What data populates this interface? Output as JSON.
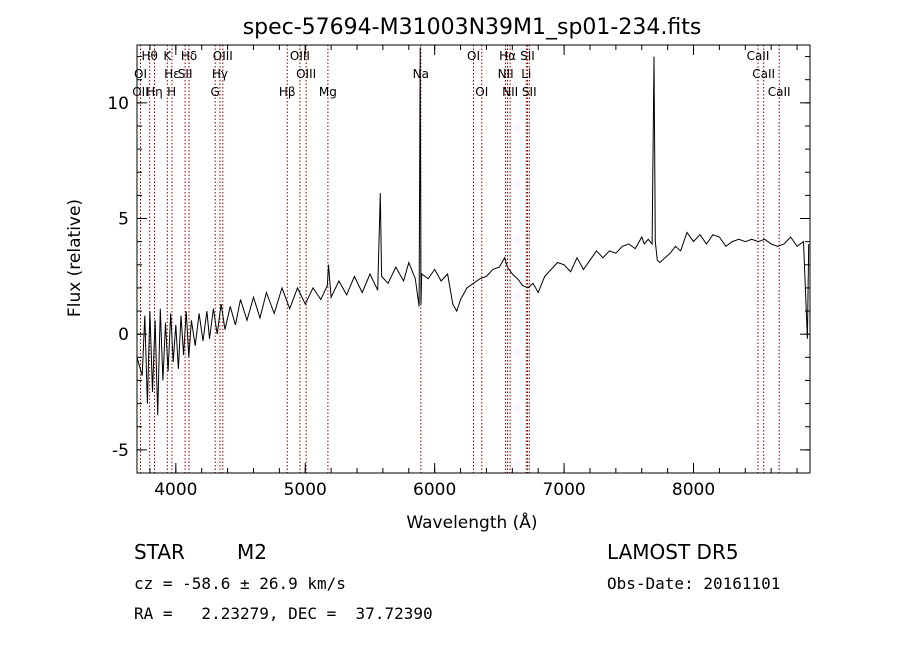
{
  "chart_data": {
    "type": "line",
    "title": "spec-57694-M31003N39M1_sp01-234.fits",
    "xlabel": "Wavelength (Å)",
    "ylabel": "Flux (relative)",
    "xlim": [
      3700,
      8900
    ],
    "ylim": [
      -6,
      12.5
    ],
    "xticks": [
      4000,
      5000,
      6000,
      7000,
      8000
    ],
    "yticks": [
      -5,
      0,
      5,
      10
    ],
    "grid": false,
    "line_color": "#000000",
    "marker_color": "#8b0000",
    "series": [
      {
        "values": [
          [
            3700,
            -1.0
          ],
          [
            3740,
            -1.8
          ],
          [
            3760,
            0.8
          ],
          [
            3780,
            -3.0
          ],
          [
            3800,
            1.0
          ],
          [
            3820,
            -2.5
          ],
          [
            3840,
            0.6
          ],
          [
            3860,
            -3.5
          ],
          [
            3880,
            1.1
          ],
          [
            3900,
            -2.0
          ],
          [
            3920,
            0.5
          ],
          [
            3940,
            -1.6
          ],
          [
            3960,
            0.9
          ],
          [
            3980,
            -1.2
          ],
          [
            4000,
            0.4
          ],
          [
            4020,
            -1.5
          ],
          [
            4040,
            0.8
          ],
          [
            4060,
            -0.9
          ],
          [
            4080,
            1.0
          ],
          [
            4100,
            -1.0
          ],
          [
            4120,
            0.6
          ],
          [
            4150,
            -0.5
          ],
          [
            4180,
            0.9
          ],
          [
            4210,
            -0.3
          ],
          [
            4240,
            1.0
          ],
          [
            4260,
            -0.2
          ],
          [
            4290,
            1.1
          ],
          [
            4320,
            0.0
          ],
          [
            4350,
            1.3
          ],
          [
            4380,
            0.2
          ],
          [
            4420,
            1.2
          ],
          [
            4460,
            0.4
          ],
          [
            4500,
            1.5
          ],
          [
            4550,
            0.6
          ],
          [
            4600,
            1.6
          ],
          [
            4650,
            0.7
          ],
          [
            4700,
            1.8
          ],
          [
            4760,
            0.9
          ],
          [
            4820,
            2.0
          ],
          [
            4880,
            1.1
          ],
          [
            4940,
            2.0
          ],
          [
            5000,
            1.3
          ],
          [
            5060,
            2.0
          ],
          [
            5120,
            1.5
          ],
          [
            5170,
            2.1
          ],
          [
            5180,
            3.0
          ],
          [
            5200,
            1.6
          ],
          [
            5260,
            2.3
          ],
          [
            5320,
            1.7
          ],
          [
            5380,
            2.5
          ],
          [
            5440,
            1.8
          ],
          [
            5500,
            2.6
          ],
          [
            5560,
            1.9
          ],
          [
            5570,
            4.0
          ],
          [
            5580,
            6.1
          ],
          [
            5590,
            2.5
          ],
          [
            5640,
            2.2
          ],
          [
            5700,
            2.9
          ],
          [
            5760,
            2.3
          ],
          [
            5800,
            3.1
          ],
          [
            5850,
            2.4
          ],
          [
            5880,
            1.2
          ],
          [
            5888,
            12.4
          ],
          [
            5894,
            1.3
          ],
          [
            5900,
            2.6
          ],
          [
            5950,
            2.4
          ],
          [
            6000,
            2.8
          ],
          [
            6050,
            2.3
          ],
          [
            6100,
            2.6
          ],
          [
            6140,
            1.3
          ],
          [
            6170,
            1.0
          ],
          [
            6200,
            1.5
          ],
          [
            6250,
            2.0
          ],
          [
            6300,
            2.2
          ],
          [
            6350,
            2.4
          ],
          [
            6400,
            2.5
          ],
          [
            6450,
            2.8
          ],
          [
            6500,
            2.9
          ],
          [
            6540,
            3.3
          ],
          [
            6563,
            2.9
          ],
          [
            6600,
            2.6
          ],
          [
            6640,
            2.4
          ],
          [
            6680,
            2.1
          ],
          [
            6720,
            2.0
          ],
          [
            6760,
            2.2
          ],
          [
            6800,
            1.8
          ],
          [
            6850,
            2.5
          ],
          [
            6900,
            2.8
          ],
          [
            6950,
            3.1
          ],
          [
            7000,
            3.0
          ],
          [
            7050,
            2.7
          ],
          [
            7100,
            3.3
          ],
          [
            7150,
            2.8
          ],
          [
            7200,
            3.2
          ],
          [
            7250,
            3.6
          ],
          [
            7300,
            3.3
          ],
          [
            7350,
            3.6
          ],
          [
            7400,
            3.5
          ],
          [
            7450,
            3.8
          ],
          [
            7500,
            3.9
          ],
          [
            7550,
            3.7
          ],
          [
            7600,
            4.2
          ],
          [
            7620,
            3.9
          ],
          [
            7650,
            4.1
          ],
          [
            7680,
            3.9
          ],
          [
            7695,
            12.0
          ],
          [
            7705,
            4.0
          ],
          [
            7720,
            3.2
          ],
          [
            7740,
            3.1
          ],
          [
            7780,
            3.3
          ],
          [
            7820,
            3.5
          ],
          [
            7860,
            3.8
          ],
          [
            7900,
            3.6
          ],
          [
            7950,
            4.4
          ],
          [
            8000,
            4.0
          ],
          [
            8050,
            4.3
          ],
          [
            8100,
            3.9
          ],
          [
            8150,
            4.3
          ],
          [
            8200,
            4.2
          ],
          [
            8250,
            3.8
          ],
          [
            8300,
            4.0
          ],
          [
            8350,
            4.1
          ],
          [
            8400,
            4.0
          ],
          [
            8450,
            4.1
          ],
          [
            8500,
            4.0
          ],
          [
            8550,
            4.1
          ],
          [
            8600,
            3.9
          ],
          [
            8650,
            3.8
          ],
          [
            8700,
            3.9
          ],
          [
            8750,
            4.2
          ],
          [
            8800,
            3.8
          ],
          [
            8850,
            4.0
          ],
          [
            8880,
            -0.2
          ],
          [
            8890,
            3.9
          ]
        ]
      }
    ],
    "line_markers": [
      {
        "label": "Hθ",
        "wl": 3798,
        "row": 0
      },
      {
        "label": "K",
        "wl": 3934,
        "row": 0
      },
      {
        "label": "Hδ",
        "wl": 4102,
        "row": 0
      },
      {
        "label": "OIII",
        "wl": 4363,
        "row": 0
      },
      {
        "label": "OIII",
        "wl": 4959,
        "row": 0
      },
      {
        "label": "OI",
        "wl": 6300,
        "row": 0
      },
      {
        "label": "Hα",
        "wl": 6563,
        "row": 0
      },
      {
        "label": "SII",
        "wl": 6717,
        "row": 0
      },
      {
        "label": "CaII",
        "wl": 8498,
        "row": 0
      },
      {
        "label": "OI",
        "wl": 3727,
        "row": 1
      },
      {
        "label": "Hε",
        "wl": 3970,
        "row": 1
      },
      {
        "label": "SII",
        "wl": 4072,
        "row": 1
      },
      {
        "label": "Hγ",
        "wl": 4341,
        "row": 1
      },
      {
        "label": "OIII",
        "wl": 5007,
        "row": 1
      },
      {
        "label": "Na",
        "wl": 5893,
        "row": 1
      },
      {
        "label": "NII",
        "wl": 6548,
        "row": 1
      },
      {
        "label": "Li",
        "wl": 6708,
        "row": 1
      },
      {
        "label": "CaII",
        "wl": 8542,
        "row": 1
      },
      {
        "label": "OII",
        "wl": 3727,
        "row": 2
      },
      {
        "label": "Hη",
        "wl": 3835,
        "row": 2
      },
      {
        "label": "H",
        "wl": 3968,
        "row": 2
      },
      {
        "label": "G",
        "wl": 4304,
        "row": 2
      },
      {
        "label": "Hβ",
        "wl": 4861,
        "row": 2
      },
      {
        "label": "Mg",
        "wl": 5175,
        "row": 2
      },
      {
        "label": "OI",
        "wl": 6364,
        "row": 2
      },
      {
        "label": "NII",
        "wl": 6583,
        "row": 2
      },
      {
        "label": "SII",
        "wl": 6731,
        "row": 2
      },
      {
        "label": "CaII",
        "wl": 8662,
        "row": 2
      }
    ]
  },
  "info": {
    "class_label": "STAR",
    "subclass": "M2",
    "survey": "LAMOST DR5",
    "cz_line": "cz = -58.6 ± 26.9 km/s",
    "obs_date": "Obs-Date: 20161101",
    "radec_line": "RA =   2.23279, DEC =  37.72390"
  }
}
